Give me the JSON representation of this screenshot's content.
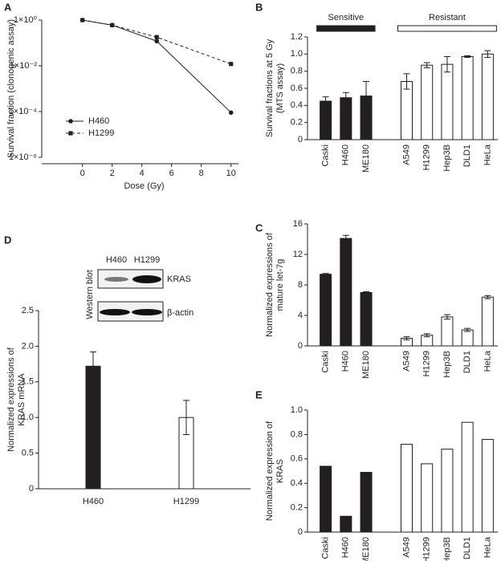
{
  "chart_data": [
    {
      "type": "line",
      "panel": "A",
      "xlabel": "Dose (Gy)",
      "ylabel": [
        "Survival fraction (clonogenic assay)"
      ],
      "x": [
        0,
        2,
        5,
        10
      ],
      "xlim": [
        -2.2,
        10.5
      ],
      "xticks": [
        0,
        2,
        4,
        6,
        8,
        10
      ],
      "ylog": true,
      "ylim": [
        1e-06,
        1
      ],
      "yticks": [
        {
          "value": 1,
          "label": "1×10⁰"
        },
        {
          "value": 0.01,
          "label": "1×10⁻²"
        },
        {
          "value": 0.0001,
          "label": "1×10⁻⁴"
        },
        {
          "value": 1e-06,
          "label": "1×10⁻⁶"
        }
      ],
      "legend": "lower left",
      "series": [
        {
          "name": "H460",
          "color": "#231f20",
          "marker": "circle",
          "dashed": false,
          "values": [
            1,
            0.6,
            0.12,
            9e-05
          ]
        },
        {
          "name": "H1299",
          "color": "#231f20",
          "marker": "square",
          "dashed": true,
          "values": [
            1,
            0.6,
            0.18,
            0.012
          ]
        }
      ]
    },
    {
      "type": "bar",
      "panel": "B",
      "ylabel": [
        "Survival fractions at 5 Gy",
        "(MTS assay)"
      ],
      "categories": [
        "Caski",
        "H460",
        "ME180",
        null,
        "A549",
        "H1299",
        "Hep3B",
        "DLD1",
        "HeLa"
      ],
      "values": [
        0.45,
        0.49,
        0.51,
        null,
        0.68,
        0.87,
        0.88,
        0.97,
        1.0
      ],
      "errors": [
        0.05,
        0.06,
        0.17,
        null,
        0.09,
        0.03,
        0.09,
        0.01,
        0.04
      ],
      "colors": [
        "#231f20",
        "#231f20",
        "#231f20",
        null,
        "#ffffff",
        "#ffffff",
        "#ffffff",
        "#ffffff",
        "#ffffff"
      ],
      "groups": [
        {
          "name": "Sensitive",
          "color": "#231f20"
        },
        {
          "name": "Resistant",
          "color": "#ffffff"
        }
      ],
      "ylim": [
        0,
        1.2
      ],
      "yticks": [
        0,
        0.2,
        0.4,
        0.6,
        0.8,
        {
          "value": 1,
          "label": "1.0"
        },
        1.2
      ]
    },
    {
      "type": "bar",
      "panel": "C",
      "ylabel": [
        "Normalized expressions of",
        "mature let-7g"
      ],
      "categories": [
        "Caski",
        "H460",
        "ME180",
        null,
        "A549",
        "H1299",
        "Hep3B",
        "DLD1",
        "HeLa"
      ],
      "values": [
        9.4,
        14.1,
        7.0,
        null,
        1.0,
        1.4,
        3.8,
        2.1,
        6.4
      ],
      "errors": [
        0.1,
        0.4,
        0.1,
        null,
        0.2,
        0.2,
        0.3,
        0.2,
        0.2
      ],
      "colors": [
        "#231f20",
        "#231f20",
        "#231f20",
        null,
        "#ffffff",
        "#ffffff",
        "#ffffff",
        "#ffffff",
        "#ffffff"
      ],
      "ylim": [
        0,
        16
      ],
      "yticks": [
        0,
        4,
        8,
        12,
        16
      ]
    },
    {
      "type": "bar",
      "panel": "D",
      "ylabel": [
        "Normalized expressions of",
        "KRAS mRNA"
      ],
      "blot": {
        "title": "Western blot",
        "lanes": [
          "H460",
          "H1299"
        ],
        "bands": [
          "KRAS",
          "β-actin"
        ]
      },
      "categories": [
        "H460",
        "H1299"
      ],
      "values": [
        1.72,
        1.0
      ],
      "errors": [
        0.2,
        0.24
      ],
      "colors": [
        "#231f20",
        "#ffffff"
      ],
      "ylim": [
        0,
        2.5
      ],
      "yticks": [
        0,
        0.5,
        {
          "value": 1,
          "label": "1.0"
        },
        1.5,
        {
          "value": 2,
          "label": "2.0"
        },
        2.5
      ]
    },
    {
      "type": "bar",
      "panel": "E",
      "ylabel": [
        "Normalized expression of",
        "KRAS"
      ],
      "categories": [
        "Caski",
        "H460",
        "ME180",
        null,
        "A549",
        "H1299",
        "Hep3B",
        "DLD1",
        "HeLa"
      ],
      "values": [
        0.54,
        0.13,
        0.49,
        null,
        0.72,
        0.56,
        0.68,
        0.9,
        0.76
      ],
      "colors": [
        "#231f20",
        "#231f20",
        "#231f20",
        null,
        "#ffffff",
        "#ffffff",
        "#ffffff",
        "#ffffff",
        "#ffffff"
      ],
      "ylim": [
        0,
        1
      ],
      "yticks": [
        0,
        0.2,
        0.4,
        0.6,
        0.8,
        {
          "value": 1,
          "label": "1.0"
        }
      ]
    }
  ]
}
